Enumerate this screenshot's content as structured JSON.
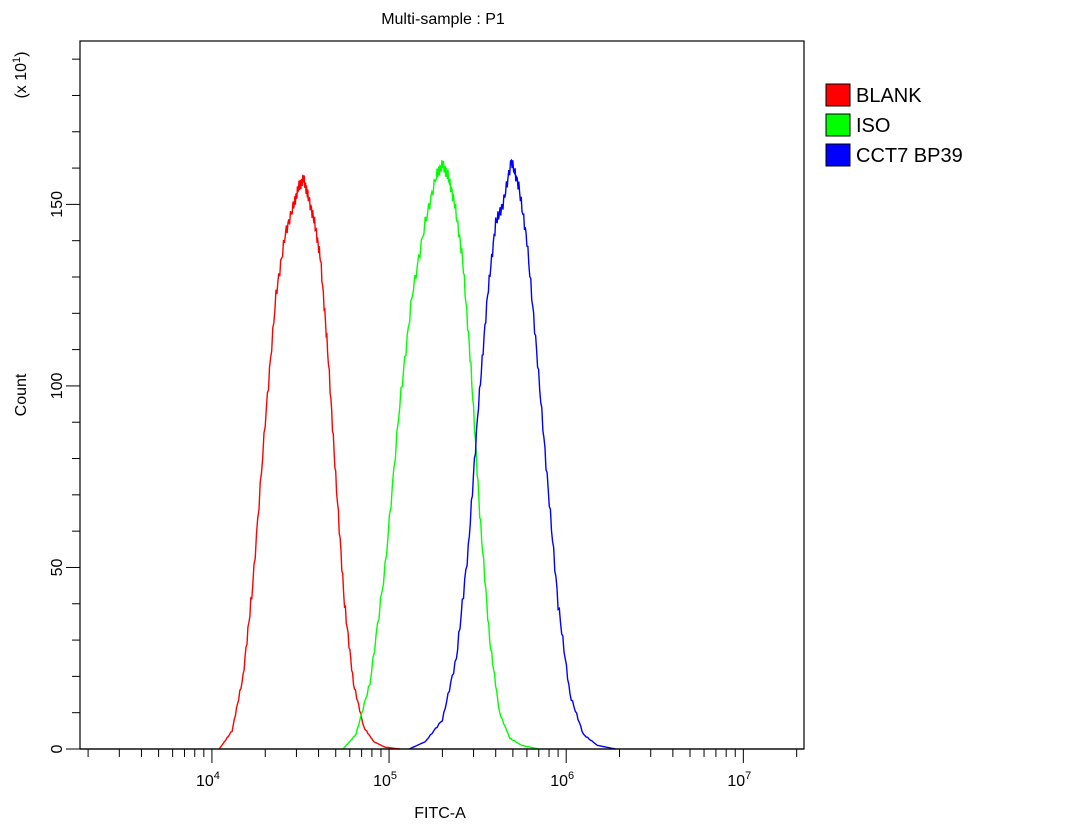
{
  "chart_data": {
    "type": "line",
    "title": "Multi-sample : P1",
    "xlabel": "FITC-A",
    "ylabel": "Count",
    "y_multiplier": "(x 10",
    "y_multiplier_exp": "1",
    "y_multiplier_close": ")",
    "x_scale": "log",
    "xlim": [
      1800.0,
      22000000.0
    ],
    "ylim": [
      0,
      195
    ],
    "x_ticks": [
      {
        "base": "10",
        "exp": "4",
        "value": 10000
      },
      {
        "base": "10",
        "exp": "5",
        "value": 100000
      },
      {
        "base": "10",
        "exp": "6",
        "value": 1000000
      },
      {
        "base": "10",
        "exp": "7",
        "value": 10000000
      }
    ],
    "y_ticks": [
      0,
      50,
      100,
      150
    ],
    "legend_position": "right",
    "series": [
      {
        "name": "BLANK",
        "color": "#ff0000",
        "x": [
          11000,
          13000,
          15000,
          17000,
          20000,
          23000,
          26000,
          29000,
          31000,
          33000,
          35000,
          38000,
          41000,
          45000,
          50000,
          56000,
          63000,
          72000,
          82000,
          95000,
          115000
        ],
        "y": [
          0,
          5,
          20,
          45,
          90,
          125,
          142,
          150,
          155,
          157,
          152,
          145,
          135,
          110,
          75,
          40,
          18,
          6,
          2,
          0.5,
          0
        ]
      },
      {
        "name": "ISO",
        "color": "#00ff00",
        "x": [
          55000,
          65000,
          78000,
          95000,
          115000,
          135000,
          160000,
          185000,
          200000,
          215000,
          235000,
          260000,
          290000,
          325000,
          370000,
          420000,
          480000,
          560000,
          700000
        ],
        "y": [
          0,
          4,
          18,
          50,
          95,
          125,
          145,
          158,
          161,
          158,
          150,
          135,
          105,
          65,
          30,
          10,
          3,
          1,
          0
        ]
      },
      {
        "name": "CCT7 BP39",
        "color": "#0000ff",
        "x": [
          130000,
          160000,
          200000,
          240000,
          280000,
          320000,
          360000,
          400000,
          440000,
          490000,
          540000,
          600000,
          680000,
          780000,
          900000,
          1050000,
          1250000,
          1500000,
          1900000
        ],
        "y": [
          0,
          2,
          8,
          25,
          55,
          95,
          125,
          145,
          150,
          162,
          155,
          140,
          110,
          75,
          40,
          15,
          4,
          1,
          0
        ]
      }
    ]
  }
}
